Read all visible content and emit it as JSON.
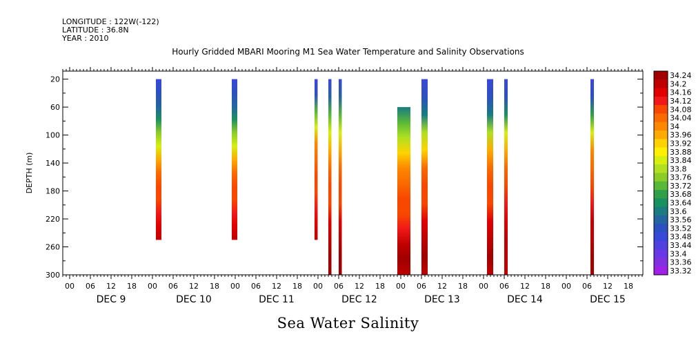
{
  "header": {
    "longitude": "LONGITUDE : 122W(-122)",
    "latitude": "LATITUDE : 36.8N",
    "year": "YEAR : 2010"
  },
  "chart_data": {
    "type": "heatmap",
    "title": "Hourly Gridded MBARI Mooring M1 Sea Water Temperature and Salinity Observations",
    "subtitle": "Sea Water Salinity",
    "ylabel": "DEPTH (m)",
    "xlim": [
      -2,
      166
    ],
    "ylim": [
      300,
      20
    ],
    "yticks": [
      20,
      60,
      100,
      140,
      180,
      220,
      260,
      300
    ],
    "xtick_hours": [
      "00",
      "06",
      "12",
      "18",
      "00",
      "06",
      "12",
      "18",
      "00",
      "06",
      "12",
      "18",
      "00",
      "06",
      "12",
      "18",
      "00",
      "06",
      "12",
      "18",
      "00",
      "06",
      "12",
      "18",
      "00",
      "06",
      "12",
      "18"
    ],
    "day_labels": [
      "DEC  9",
      "DEC 10",
      "DEC 11",
      "DEC 12",
      "DEC 13",
      "DEC 14",
      "DEC 15"
    ],
    "colorbar": {
      "labels": [
        "34.24",
        "34.2",
        "34.16",
        "34.12",
        "34.08",
        "34.04",
        "34",
        "33.96",
        "33.92",
        "33.88",
        "33.84",
        "33.8",
        "33.76",
        "33.72",
        "33.68",
        "33.64",
        "33.6",
        "33.56",
        "33.52",
        "33.48",
        "33.44",
        "33.4",
        "33.36",
        "33.32"
      ],
      "colors": [
        "#a00000",
        "#c00000",
        "#e00000",
        "#f01818",
        "#f84800",
        "#fa6a00",
        "#fc8800",
        "#fdab00",
        "#ffd200",
        "#ffef00",
        "#d6ef10",
        "#b0e020",
        "#8ccc28",
        "#58b838",
        "#30a048",
        "#1a9060",
        "#187c80",
        "#2464a0",
        "#2c50c0",
        "#3848d8",
        "#5040e0",
        "#6838e8",
        "#8030e0",
        "#a020e8"
      ]
    },
    "series": [
      {
        "day_hour": 25,
        "width": 1.6,
        "depth_range": [
          20,
          250
        ],
        "salinity": [
          33.48,
          33.52,
          33.58,
          33.66,
          33.76,
          33.86,
          33.96,
          34.04,
          34.06,
          34.08,
          34.1,
          34.16,
          34.22
        ]
      },
      {
        "day_hour": 47,
        "width": 1.6,
        "depth_range": [
          20,
          250
        ],
        "salinity": [
          33.48,
          33.52,
          33.58,
          33.66,
          33.76,
          33.86,
          33.96,
          34.04,
          34.06,
          34.08,
          34.1,
          34.16,
          34.22
        ]
      },
      {
        "day_hour": 71,
        "width": 0.9,
        "depth_range": [
          20,
          250
        ],
        "salinity": [
          33.48,
          33.54,
          33.7,
          33.86,
          34.0,
          34.04,
          34.06,
          34.08,
          34.1,
          34.14,
          34.2
        ]
      },
      {
        "day_hour": 75,
        "width": 0.9,
        "depth_range": [
          20,
          300
        ],
        "salinity": [
          33.48,
          33.56,
          33.7,
          33.84,
          33.96,
          34.04,
          34.06,
          34.08,
          34.14,
          34.2,
          34.24,
          34.24
        ]
      },
      {
        "day_hour": 78,
        "width": 0.9,
        "depth_range": [
          20,
          300
        ],
        "salinity": [
          33.48,
          33.56,
          33.7,
          33.84,
          33.96,
          34.04,
          34.06,
          34.08,
          34.14,
          34.2,
          34.24,
          34.24
        ]
      },
      {
        "day_hour": 95,
        "width": 3.8,
        "depth_range": [
          60,
          300
        ],
        "salinity": [
          33.62,
          33.7,
          33.8,
          33.92,
          34.0,
          34.04,
          34.06,
          34.08,
          34.12,
          34.2,
          34.24,
          34.2
        ]
      },
      {
        "day_hour": 102,
        "width": 1.8,
        "depth_range": [
          20,
          300
        ],
        "salinity": [
          33.48,
          33.5,
          33.6,
          33.78,
          33.94,
          34.04,
          34.06,
          34.08,
          34.14,
          34.2,
          34.24,
          34.22
        ]
      },
      {
        "day_hour": 121,
        "width": 1.8,
        "depth_range": [
          20,
          300
        ],
        "salinity": [
          33.48,
          33.5,
          33.62,
          33.8,
          33.96,
          34.04,
          34.06,
          34.08,
          34.14,
          34.2,
          34.24,
          34.22
        ]
      },
      {
        "day_hour": 126,
        "width": 1.0,
        "depth_range": [
          20,
          300
        ],
        "salinity": [
          33.48,
          33.54,
          33.66,
          33.84,
          33.98,
          34.04,
          34.06,
          34.1,
          34.16,
          34.2,
          34.22,
          34.22
        ]
      },
      {
        "day_hour": 151,
        "width": 1.0,
        "depth_range": [
          20,
          300
        ],
        "salinity": [
          33.48,
          33.54,
          33.68,
          33.86,
          34.0,
          34.04,
          34.08,
          34.12,
          34.18,
          34.22,
          34.24,
          34.24
        ]
      }
    ]
  }
}
